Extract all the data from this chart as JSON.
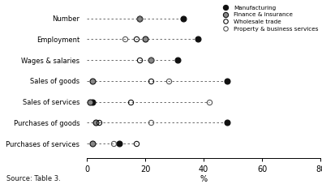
{
  "categories": [
    "Purchases of services",
    "Purchases of goods",
    "Sales of services",
    "Sales of goods",
    "Wages & salaries",
    "Employment",
    "Number"
  ],
  "series": {
    "Manufacturing": [
      11,
      48,
      2,
      48,
      31,
      38,
      33
    ],
    "Finance & insurance": [
      2,
      3,
      1,
      2,
      22,
      20,
      18
    ],
    "Wholesale trade": [
      17,
      4,
      15,
      22,
      18,
      17,
      18
    ],
    "Property & business services": [
      9,
      22,
      42,
      28,
      22,
      13,
      18
    ]
  },
  "xlim": [
    0,
    80
  ],
  "xticks": [
    0,
    20,
    40,
    60,
    80
  ],
  "xlabel": "%",
  "source": "Source: Table 3.",
  "background_color": "#ffffff"
}
